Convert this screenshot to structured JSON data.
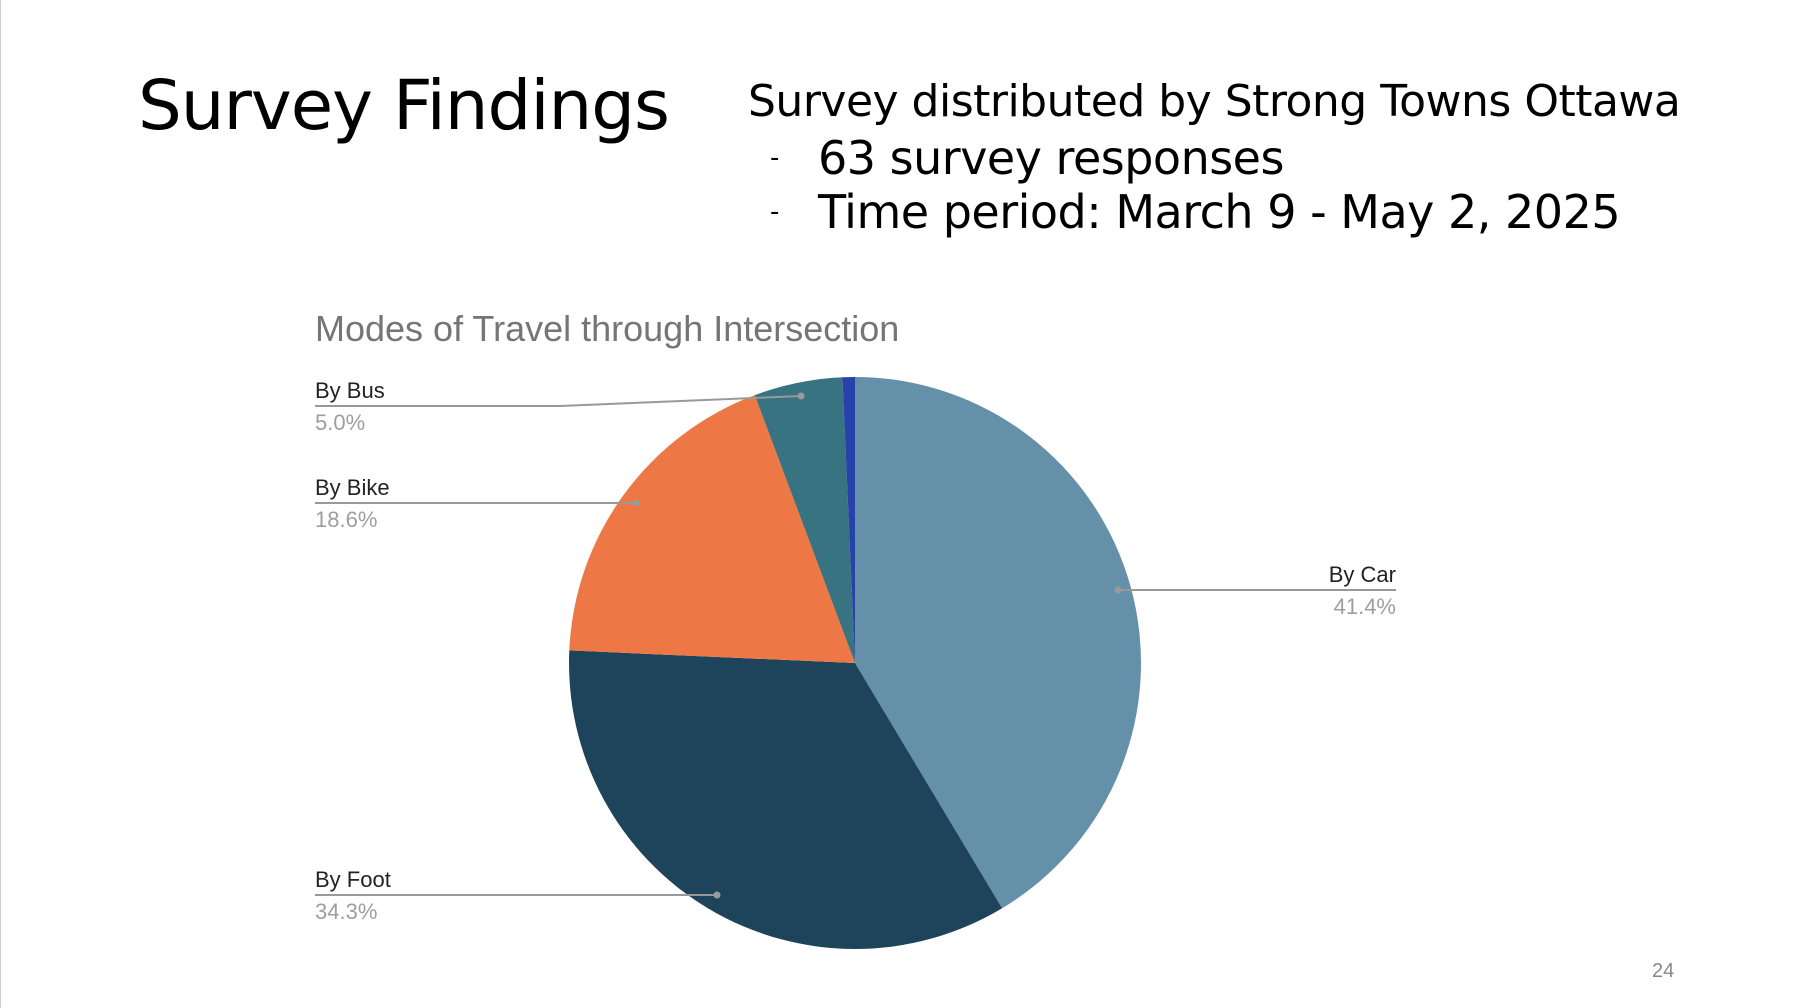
{
  "slide": {
    "title": "Survey Findings",
    "info_heading": "Survey distributed by Strong Towns Ottawa",
    "bullets": [
      {
        "marker": "-",
        "text": "63 survey responses"
      },
      {
        "marker": "-",
        "text": "Time period: March 9 - May 2, 2025"
      }
    ],
    "page_number": "24"
  },
  "chart_data": {
    "type": "pie",
    "title": "Modes of Travel through Intersection",
    "slices": [
      {
        "label": "By Car",
        "value": 41.4,
        "display": "41.4%",
        "color": "#6490aa"
      },
      {
        "label": "By Foot",
        "value": 34.3,
        "display": "34.3%",
        "color": "#1e445c"
      },
      {
        "label": "By Bike",
        "value": 18.6,
        "display": "18.6%",
        "color": "#ed7845"
      },
      {
        "label": "By Bus",
        "value": 5.0,
        "display": "5.0%",
        "color": "#377380"
      },
      {
        "label": "",
        "value": 0.7,
        "display": "",
        "color": "#2742a8"
      }
    ],
    "legend": "callout labels",
    "start_angle": "top, clockwise"
  }
}
